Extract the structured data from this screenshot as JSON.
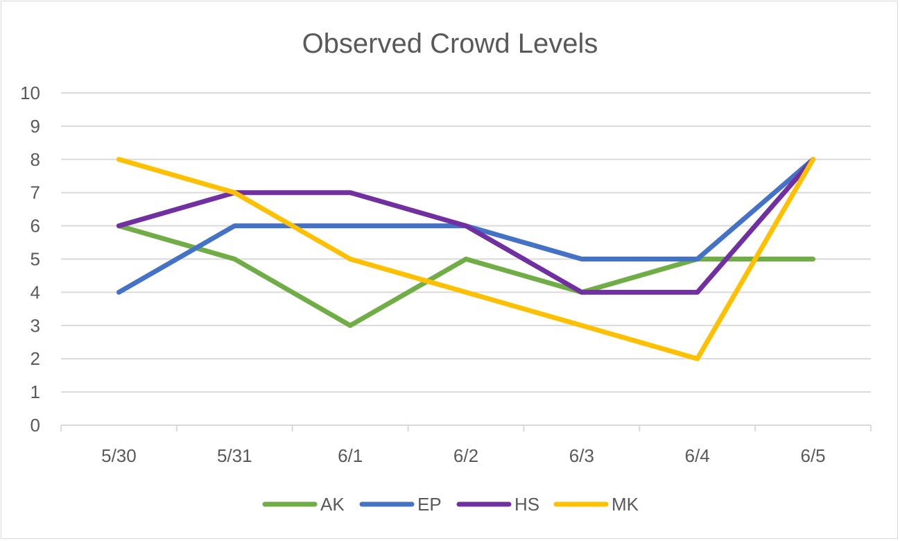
{
  "chart_data": {
    "type": "line",
    "title": "Observed Crowd Levels",
    "xlabel": "",
    "ylabel": "",
    "categories": [
      "5/30",
      "5/31",
      "6/1",
      "6/2",
      "6/3",
      "6/4",
      "6/5"
    ],
    "ylim": [
      0,
      10
    ],
    "yticks": [
      0,
      1,
      2,
      3,
      4,
      5,
      6,
      7,
      8,
      9,
      10
    ],
    "grid": true,
    "legend_position": "bottom",
    "series": [
      {
        "name": "AK",
        "color": "#70ad47",
        "values": [
          6,
          5,
          3,
          5,
          4,
          5,
          5
        ]
      },
      {
        "name": "EP",
        "color": "#4472c4",
        "values": [
          4,
          6,
          6,
          6,
          5,
          5,
          8
        ]
      },
      {
        "name": "HS",
        "color": "#7030a0",
        "values": [
          6,
          7,
          7,
          6,
          4,
          4,
          8
        ]
      },
      {
        "name": "MK",
        "color": "#ffc000",
        "values": [
          8,
          7,
          5,
          4,
          3,
          2,
          8
        ]
      }
    ]
  }
}
